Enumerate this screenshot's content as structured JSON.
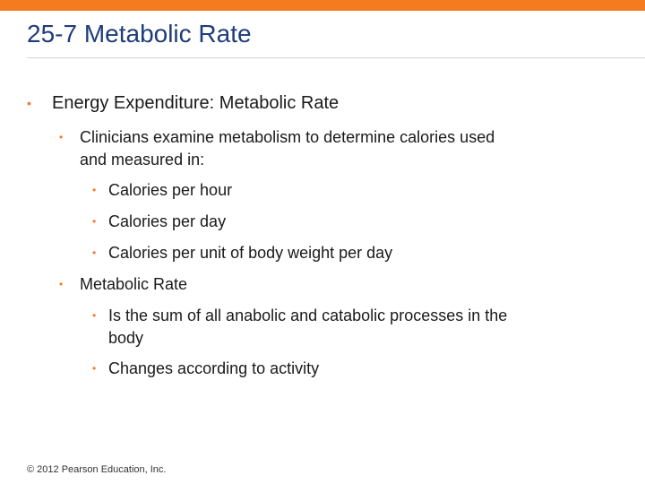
{
  "slide": {
    "title": "25-7 Metabolic Rate",
    "footer": "© 2012 Pearson Education, Inc.",
    "accent_color": "#f47b20",
    "title_color": "#1f3d7a",
    "bullet_icon": "orange-bullet-dot"
  },
  "bullets": {
    "b1": "Energy Expenditure: Metabolic Rate",
    "b1_1_line1": "Clinicians examine metabolism to determine calories used",
    "b1_1_line2": "and measured in:",
    "b1_1_1": "Calories per hour",
    "b1_1_2": "Calories per day",
    "b1_1_3": "Calories per unit of body weight per day",
    "b1_2": "Metabolic Rate",
    "b1_2_1_line1": "Is the sum of all anabolic and catabolic processes in the",
    "b1_2_1_line2": "body",
    "b1_2_2": "Changes according to activity"
  }
}
